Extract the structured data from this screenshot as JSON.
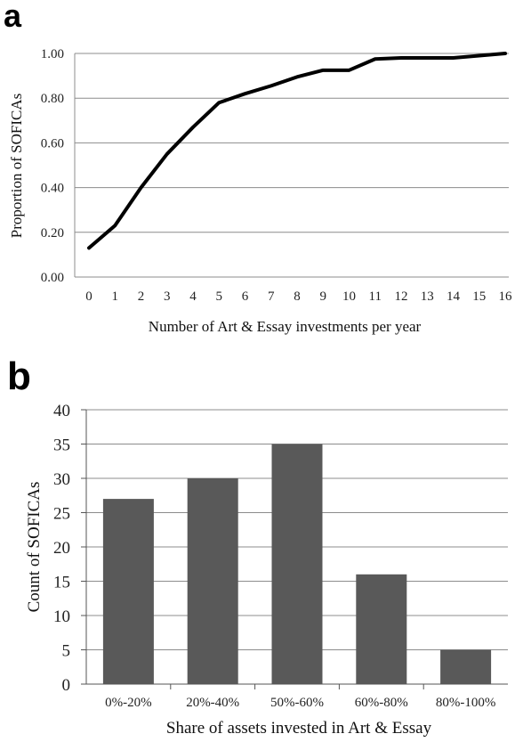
{
  "chart_data": [
    {
      "panel": "a",
      "type": "line",
      "title": "",
      "xlabel": "Number of Art & Essay investments per year",
      "ylabel": "Proportion of SOFICAs",
      "x": [
        0,
        1,
        2,
        3,
        4,
        5,
        6,
        7,
        8,
        9,
        10,
        11,
        12,
        13,
        14,
        15,
        16
      ],
      "x_tick_labels": [
        "0",
        "1",
        "2",
        "3",
        "4",
        "5",
        "6",
        "7",
        "8",
        "9",
        "10",
        "11",
        "12",
        "13",
        "14",
        "15",
        "16"
      ],
      "series": [
        {
          "values": [
            0.13,
            0.23,
            0.4,
            0.55,
            0.67,
            0.78,
            0.82,
            0.855,
            0.895,
            0.925,
            0.925,
            0.975,
            0.98,
            0.98,
            0.98,
            0.99,
            1.0
          ]
        }
      ],
      "ylim": [
        0,
        1
      ],
      "y_ticks": [
        0,
        0.2,
        0.4,
        0.6,
        0.8,
        1.0
      ],
      "y_tick_labels": [
        "0.00",
        "0.20",
        "0.40",
        "0.60",
        "0.80",
        "1.00"
      ],
      "grid": "horizontal",
      "line_color": "#000000"
    },
    {
      "panel": "b",
      "type": "bar",
      "title": "",
      "xlabel": "Share of assets invested in Art & Essay",
      "ylabel": "Count of SOFICAs",
      "categories": [
        "0%-20%",
        "20%-40%",
        "50%-60%",
        "60%-80%",
        "80%-100%"
      ],
      "values": [
        27,
        30,
        35,
        16,
        5
      ],
      "ylim": [
        0,
        40
      ],
      "y_ticks": [
        0,
        5,
        10,
        15,
        20,
        25,
        30,
        35,
        40
      ],
      "y_tick_labels": [
        "0",
        "5",
        "10",
        "15",
        "20",
        "25",
        "30",
        "35",
        "40"
      ],
      "grid": "horizontal",
      "bar_color": "#595959"
    }
  ]
}
